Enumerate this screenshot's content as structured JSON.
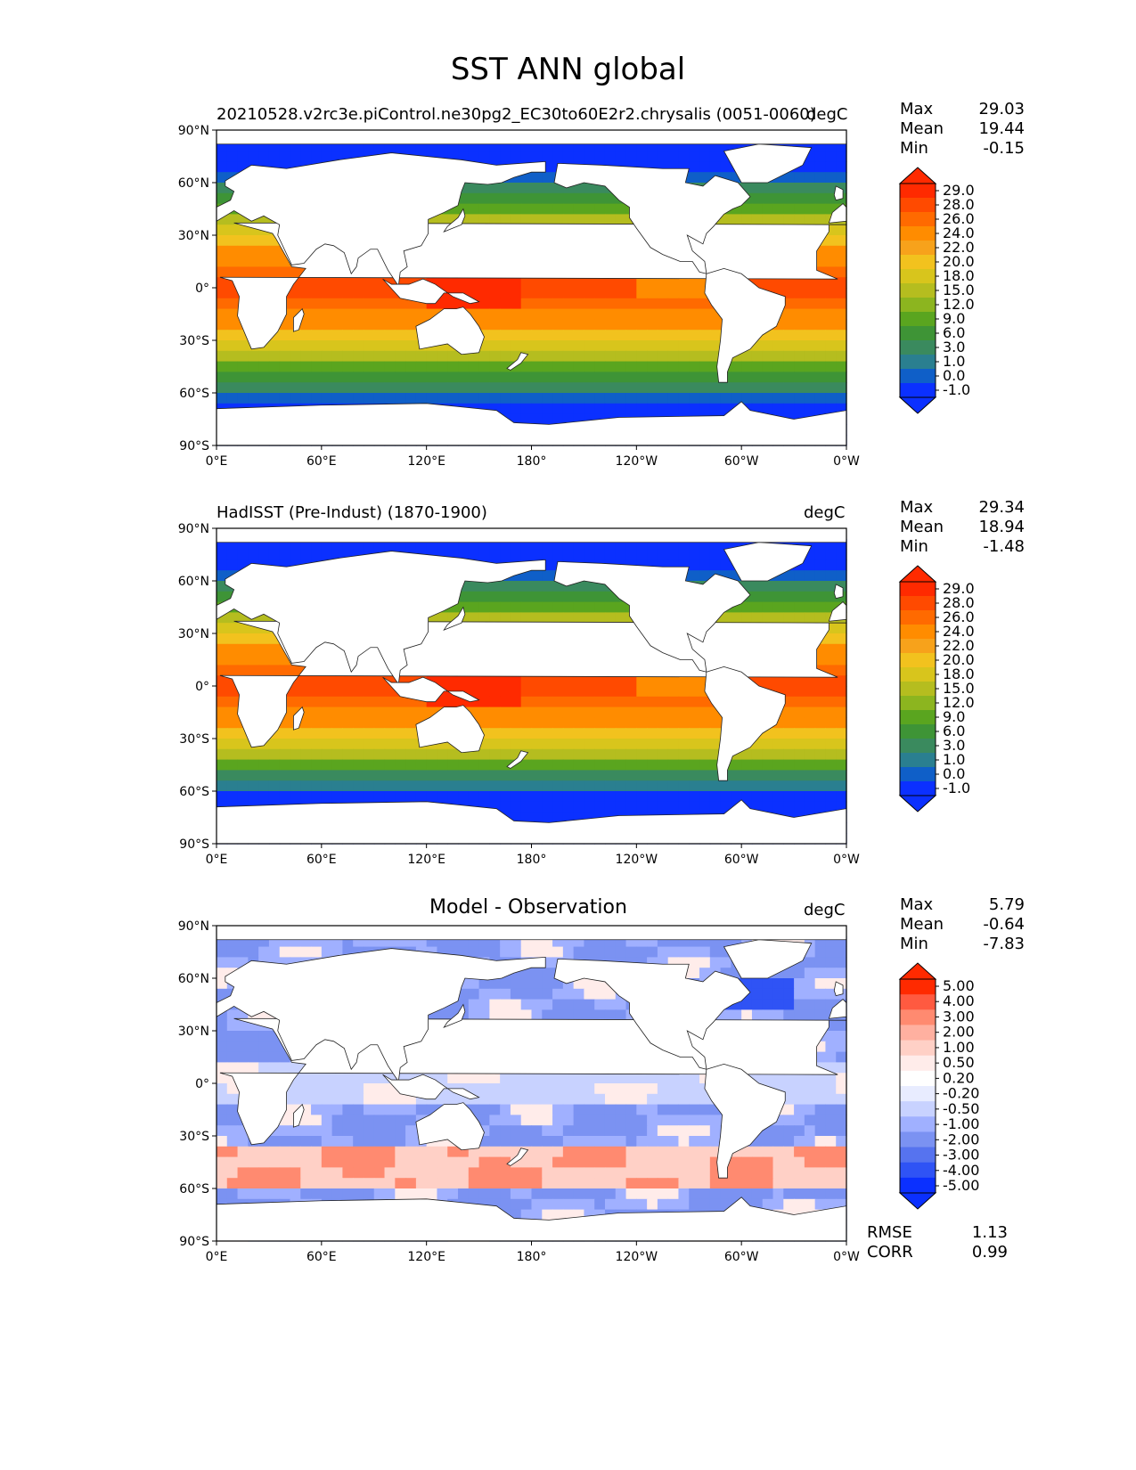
{
  "title": "SST ANN global",
  "panels": [
    {
      "id": "model",
      "title_left": "20210528.v2rc3e.piControl.ne30pg2_EC30to60E2r2.chrysalis (0051-0060)",
      "title_center": "",
      "units": "degC",
      "stats": [
        {
          "label": "Max",
          "value": "29.03"
        },
        {
          "label": "Mean",
          "value": "19.44"
        },
        {
          "label": "Min",
          "value": "-0.15"
        }
      ],
      "colorbar_labels": [
        "29.0",
        "28.0",
        "26.0",
        "24.0",
        "22.0",
        "20.0",
        "18.0",
        "15.0",
        "12.0",
        "9.0",
        "6.0",
        "3.0",
        "1.0",
        "0.0",
        "-1.0"
      ]
    },
    {
      "id": "obs",
      "title_left": "HadISST (Pre-Indust) (1870-1900)",
      "title_center": "",
      "units": "degC",
      "stats": [
        {
          "label": "Max",
          "value": "29.34"
        },
        {
          "label": "Mean",
          "value": "18.94"
        },
        {
          "label": "Min",
          "value": "-1.48"
        }
      ],
      "colorbar_labels": [
        "29.0",
        "28.0",
        "26.0",
        "24.0",
        "22.0",
        "20.0",
        "18.0",
        "15.0",
        "12.0",
        "9.0",
        "6.0",
        "3.0",
        "1.0",
        "0.0",
        "-1.0"
      ]
    },
    {
      "id": "diff",
      "title_left": "",
      "title_center": "Model - Observation",
      "units": "degC",
      "stats": [
        {
          "label": "Max",
          "value": "5.79"
        },
        {
          "label": "Mean",
          "value": "-0.64"
        },
        {
          "label": "Min",
          "value": "-7.83"
        }
      ],
      "colorbar_labels": [
        "5.00",
        "4.00",
        "3.00",
        "2.00",
        "1.00",
        "0.50",
        "0.20",
        "-0.20",
        "-0.50",
        "-1.00",
        "-2.00",
        "-3.00",
        "-4.00",
        "-5.00"
      ],
      "metrics": [
        {
          "label": "RMSE",
          "value": "1.13"
        },
        {
          "label": "CORR",
          "value": "0.99"
        }
      ]
    }
  ],
  "axes": {
    "lat_ticks": [
      "90°N",
      "60°N",
      "30°N",
      "0°",
      "30°S",
      "60°S",
      "90°S"
    ],
    "lon_ticks": [
      "0°E",
      "60°E",
      "120°E",
      "180°",
      "120°W",
      "60°W",
      "0°W"
    ]
  },
  "colors": {
    "sst_scale": [
      "#ff2a00",
      "#ff4a00",
      "#ff6a00",
      "#ff8c00",
      "#f7a21b",
      "#f2c21e",
      "#d8c51c",
      "#b5bd1f",
      "#8cb51f",
      "#5aa51f",
      "#3e9436",
      "#3a8a5e",
      "#2a7f90",
      "#0f5fc8",
      "#0b30ff"
    ],
    "diff_scale": [
      "#ff2a00",
      "#ff5a40",
      "#ff8a70",
      "#ffb0a0",
      "#ffd0c6",
      "#ffecea",
      "#ffffff",
      "#e8ecff",
      "#c8d2ff",
      "#a0b0ff",
      "#7b92f2",
      "#5673ef",
      "#2f53f5",
      "#0b30ff"
    ],
    "land": "#ffffff"
  }
}
